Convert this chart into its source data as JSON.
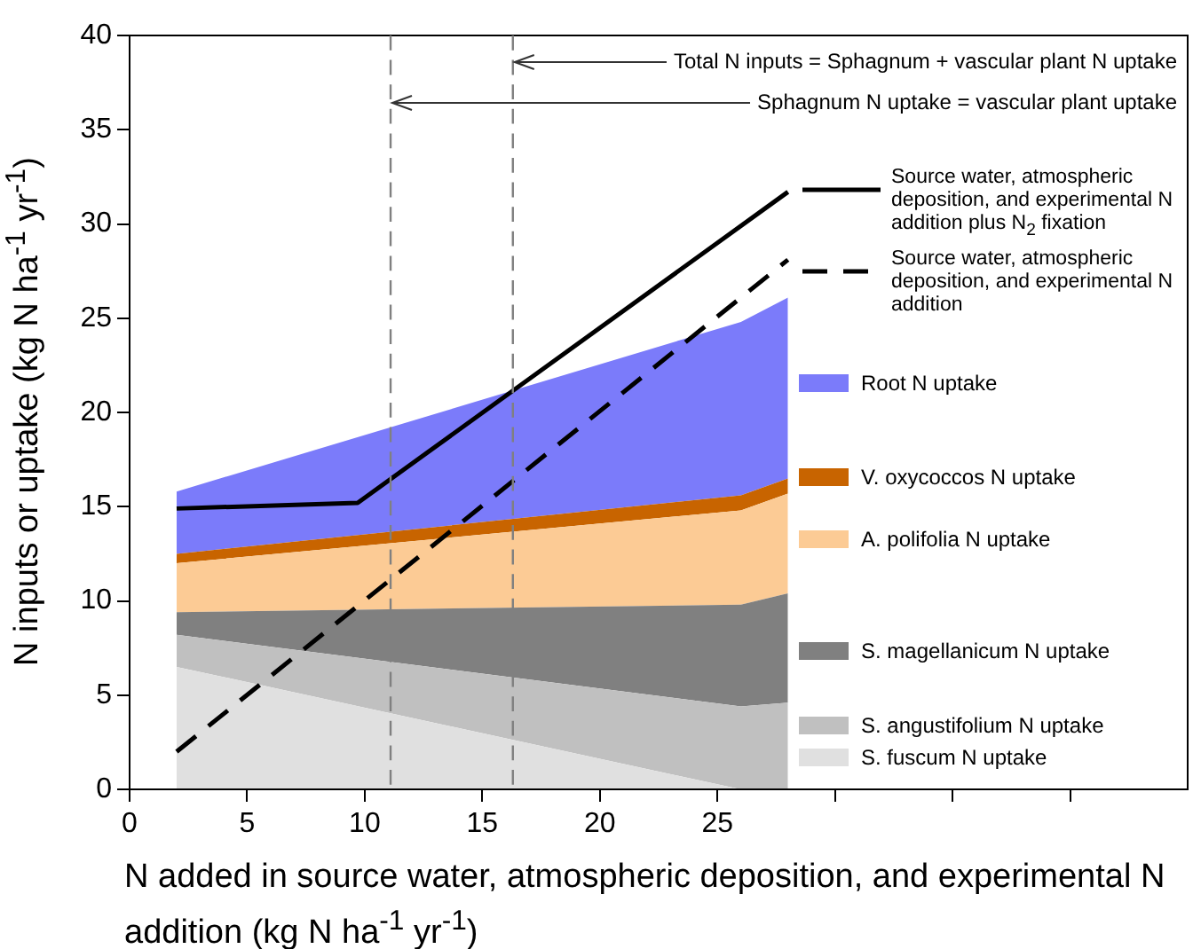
{
  "chart_data": {
    "type": "area",
    "stacked": true,
    "xlabel": "N added in source water, atmospheric deposition, and experimental N addition (kg N ha$^{-1}$ yr$^{-1}$)",
    "ylabel": "N inputs or uptake (kg N ha$^{-1}$ yr$^{-1}$)",
    "x": [
      2,
      26,
      28
    ],
    "series": [
      {
        "name": "S. fuscum N uptake",
        "color": "#e0e0e0",
        "values": [
          6.5,
          0,
          0
        ]
      },
      {
        "name": "S. angustifolium N uptake",
        "color": "#c0c0c0",
        "values": [
          1.7,
          4.4,
          4.6
        ]
      },
      {
        "name": "S. magellanicum N uptake",
        "color": "#808080",
        "values": [
          1.2,
          5.4,
          5.8
        ]
      },
      {
        "name": "A. polifolia N uptake",
        "color": "#fccb95",
        "values": [
          2.6,
          5.0,
          5.3
        ]
      },
      {
        "name": "V. oxycoccos N uptake",
        "color": "#c86400",
        "values": [
          0.5,
          0.8,
          0.8
        ]
      },
      {
        "name": "Root N uptake",
        "color": "#7b7bfa",
        "values": [
          3.3,
          9.2,
          9.6
        ]
      },
      {
        "name": "Source water, atmospheric deposition, and experimental N addition plus N$_{2}$ fixation",
        "type": "line",
        "line_style": "solid",
        "color": "#000000",
        "x": [
          2,
          9.7,
          28
        ],
        "values": [
          14.9,
          15.2,
          31.7
        ]
      },
      {
        "name": "Source water, atmospheric deposition, and experimental N addition",
        "type": "line",
        "line_style": "dashed",
        "color": "#000000",
        "x": [
          2,
          28
        ],
        "values": [
          2.0,
          28.1
        ]
      }
    ],
    "ref_lines": [
      {
        "axis": "x",
        "value": 16.3,
        "label": "Total N inputs = Sphagnum + vascular plant N uptake",
        "color": "#808080",
        "line_style": "dashed"
      },
      {
        "axis": "x",
        "value": 11.1,
        "label": "Sphagnum N uptake = vascular plant uptake",
        "color": "#808080",
        "line_style": "dashed"
      }
    ],
    "xlim": [
      0,
      45
    ],
    "xticks": [
      0,
      5,
      10,
      15,
      20,
      25,
      {
        "value": 30,
        "label": null
      },
      {
        "value": 35,
        "label": null
      },
      {
        "value": 40,
        "label": null
      }
    ],
    "ylim": [
      0,
      40
    ],
    "yticks": [
      0,
      5,
      10,
      15,
      20,
      25,
      30,
      35,
      40
    ],
    "grid": false,
    "legend": "right"
  }
}
